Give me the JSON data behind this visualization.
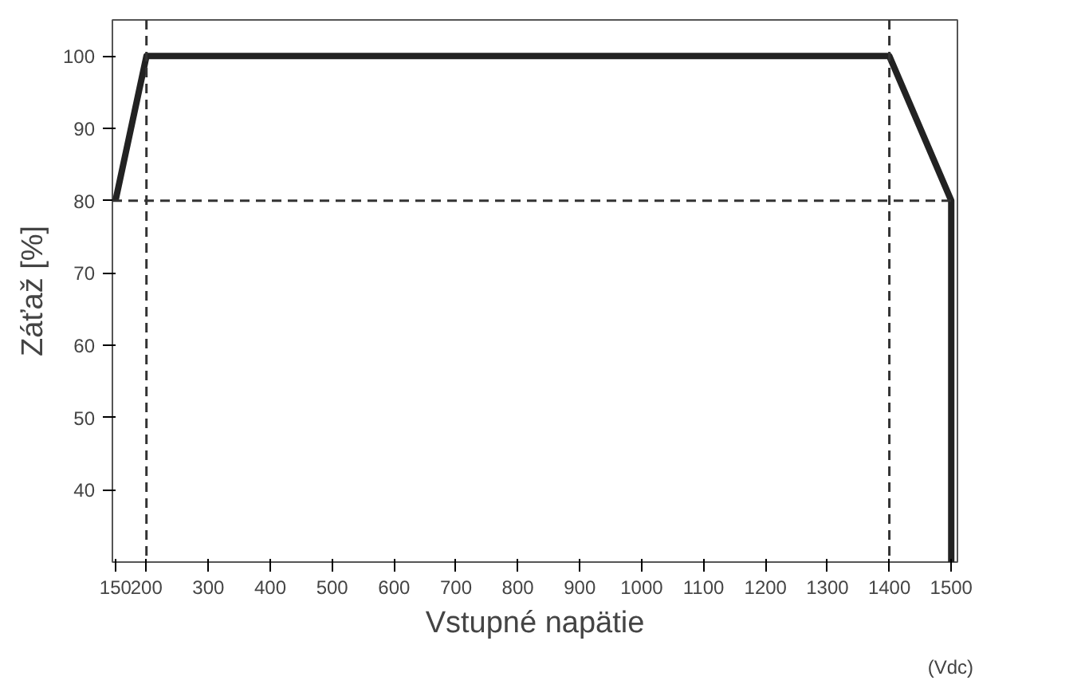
{
  "chart_data": {
    "type": "line",
    "xlabel": "Vstupné napätie",
    "ylabel": "Záťaž [%]",
    "annotations": [
      "(Vdc)"
    ],
    "x": [
      150,
      200,
      1400,
      1500,
      1500
    ],
    "series": [
      {
        "color": "#222222",
        "values": [
          80,
          100,
          100,
          80,
          30
        ]
      }
    ],
    "xlim": [
      145,
      1510
    ],
    "xticks": [
      150,
      200,
      300,
      400,
      500,
      600,
      700,
      800,
      900,
      1000,
      1100,
      1200,
      1300,
      1400,
      1500
    ],
    "ylim": [
      30,
      105
    ],
    "yticks": [
      40,
      50,
      60,
      70,
      80,
      90,
      100
    ],
    "ref_lines": [
      {
        "axis": "y",
        "value": 80,
        "line_style": "dashed",
        "color": "#333333"
      },
      {
        "axis": "x",
        "value": 200,
        "line_style": "dashed",
        "color": "#333333"
      },
      {
        "axis": "x",
        "value": 1400,
        "line_style": "dashed",
        "color": "#333333"
      }
    ],
    "grid": false,
    "line_style": "solid",
    "marker": "none"
  }
}
